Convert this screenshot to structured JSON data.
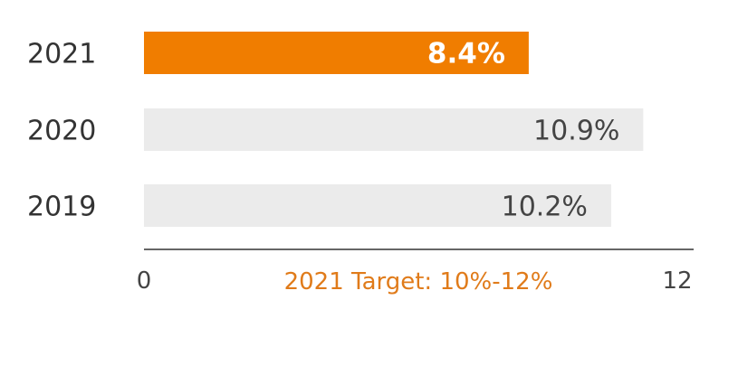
{
  "chart_data": {
    "type": "bar",
    "orientation": "horizontal",
    "categories": [
      "2021",
      "2020",
      "2019"
    ],
    "values": [
      8.4,
      10.9,
      10.2
    ],
    "value_labels": [
      "8.4%",
      "10.9%",
      "10.2%"
    ],
    "highlight_index": 0,
    "xlim": [
      0,
      12
    ],
    "x_ticks": [
      "0",
      "12"
    ],
    "annotation": "2021 Target: 10%-12%",
    "grid": false,
    "colors": {
      "highlight": "#F07D00",
      "bar": "#EBEBEB",
      "axis": "#666666",
      "annotation": "#E07B1A"
    }
  }
}
